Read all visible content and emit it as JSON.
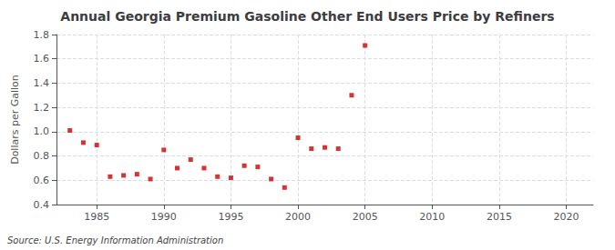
{
  "chart_data": {
    "type": "scatter",
    "title": "Annual Georgia Premium Gasoline Other End Users Price by Refiners",
    "ylabel": "Dollars per Gallon",
    "annotation": "Source: U.S. Energy Information Administration",
    "x": [
      1983,
      1984,
      1985,
      1986,
      1987,
      1988,
      1989,
      1990,
      1991,
      1992,
      1993,
      1994,
      1995,
      1996,
      1997,
      1998,
      1999,
      2000,
      2001,
      2002,
      2003,
      2004,
      2005
    ],
    "values": [
      1.01,
      0.91,
      0.89,
      0.63,
      0.64,
      0.65,
      0.61,
      0.85,
      0.7,
      0.77,
      0.7,
      0.63,
      0.62,
      0.72,
      0.71,
      0.61,
      0.54,
      0.95,
      0.86,
      0.87,
      0.86,
      1.3,
      1.71
    ],
    "color": "#cc0000",
    "marker": "square",
    "xlim": [
      1982,
      2022
    ],
    "xticks": [
      1985,
      1990,
      1995,
      2000,
      2005,
      2010,
      2015,
      2020
    ],
    "ylim": [
      0.4,
      1.8
    ],
    "yticks": [
      0.4,
      0.6,
      0.8,
      {
        "value": 1.0,
        "label": "1.0"
      },
      1.2,
      1.4,
      1.6,
      1.8
    ],
    "grid": true
  }
}
